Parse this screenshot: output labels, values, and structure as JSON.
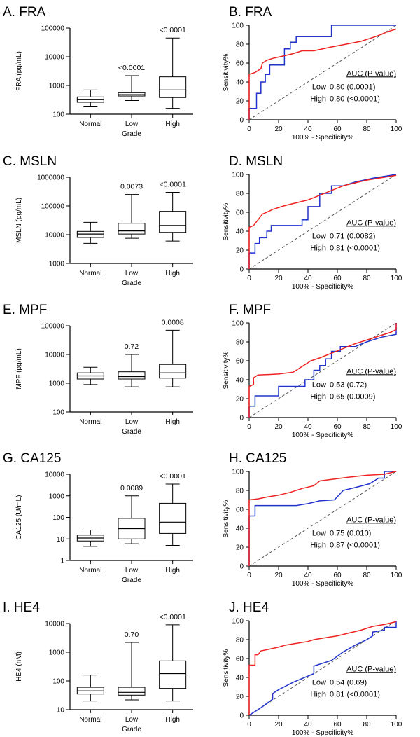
{
  "chart_data": [
    {
      "type": "boxplot",
      "panel": "A",
      "title": "A. FRA",
      "ylabel": "FRA (pg/mL)",
      "xlabel": "Grade",
      "yscale": "log",
      "ylim": [
        100,
        100000
      ],
      "yticks": [
        "100",
        "1000",
        "10000",
        "100000"
      ],
      "categories": [
        "Normal",
        "Low",
        "High"
      ],
      "boxes": [
        {
          "min": 180,
          "q1": 260,
          "median": 320,
          "q3": 400,
          "max": 700,
          "label": ""
        },
        {
          "min": 300,
          "q1": 430,
          "median": 480,
          "q3": 560,
          "max": 2200,
          "label": "<0.0001"
        },
        {
          "min": 160,
          "q1": 380,
          "median": 700,
          "q3": 2000,
          "max": 45000,
          "label": "<0.0001"
        }
      ]
    },
    {
      "type": "roc",
      "panel": "B",
      "title": "B.  FRA",
      "xlabel": "100% - Specificity%",
      "ylabel": "Sensitivity%",
      "xticks": [
        "0",
        "20",
        "40",
        "60",
        "80",
        "100"
      ],
      "yticks": [
        "0",
        "20",
        "40",
        "60",
        "80",
        "100"
      ],
      "auc_header": "AUC (P-value)",
      "series": [
        {
          "name": "Low",
          "auc": "0.80 (0.0001)",
          "color": "#2233cc",
          "points": [
            [
              0,
              0
            ],
            [
              0,
              12
            ],
            [
              5,
              12
            ],
            [
              5,
              28
            ],
            [
              8,
              28
            ],
            [
              8,
              40
            ],
            [
              11,
              40
            ],
            [
              11,
              48
            ],
            [
              14,
              48
            ],
            [
              14,
              58
            ],
            [
              24,
              58
            ],
            [
              24,
              75
            ],
            [
              28,
              75
            ],
            [
              28,
              82
            ],
            [
              32,
              82
            ],
            [
              32,
              88
            ],
            [
              48,
              88
            ],
            [
              56,
              88
            ],
            [
              56,
              100
            ],
            [
              100,
              100
            ]
          ]
        },
        {
          "name": "High",
          "auc": "0.80 (<0.0001)",
          "color": "#ee2222",
          "points": [
            [
              0,
              0
            ],
            [
              0,
              48
            ],
            [
              4,
              50
            ],
            [
              8,
              54
            ],
            [
              9,
              60
            ],
            [
              12,
              63
            ],
            [
              16,
              65
            ],
            [
              22,
              67
            ],
            [
              30,
              70
            ],
            [
              36,
              73
            ],
            [
              44,
              73
            ],
            [
              56,
              77
            ],
            [
              66,
              80
            ],
            [
              76,
              83
            ],
            [
              86,
              88
            ],
            [
              94,
              93
            ],
            [
              100,
              96
            ]
          ]
        }
      ]
    },
    {
      "type": "boxplot",
      "panel": "C",
      "title": "C. MSLN",
      "ylabel": "MSLN (pg/mL)",
      "xlabel": "Grade",
      "yscale": "log",
      "ylim": [
        1000,
        1000000
      ],
      "yticks": [
        "1000",
        "10000",
        "100000",
        "1000000"
      ],
      "categories": [
        "Normal",
        "Low",
        "High"
      ],
      "boxes": [
        {
          "min": 5000,
          "q1": 8000,
          "median": 10500,
          "q3": 13000,
          "max": 27000,
          "label": ""
        },
        {
          "min": 7500,
          "q1": 10500,
          "median": 13500,
          "q3": 25000,
          "max": 250000,
          "label": "0.0073"
        },
        {
          "min": 6000,
          "q1": 12000,
          "median": 21000,
          "q3": 65000,
          "max": 300000,
          "label": "<0.0001"
        }
      ]
    },
    {
      "type": "roc",
      "panel": "D",
      "title": "D.  MSLN",
      "xlabel": "100% - Specificity%",
      "ylabel": "Sensitivity%",
      "xticks": [
        "0",
        "20",
        "40",
        "60",
        "80",
        "100"
      ],
      "yticks": [
        "0",
        "20",
        "40",
        "60",
        "80",
        "100"
      ],
      "auc_header": "AUC (P-value)",
      "series": [
        {
          "name": "Low",
          "auc": "0.71 (0.0082)",
          "color": "#2233cc",
          "points": [
            [
              0,
              0
            ],
            [
              0,
              17
            ],
            [
              4,
              17
            ],
            [
              4,
              27
            ],
            [
              7,
              27
            ],
            [
              7,
              33
            ],
            [
              12,
              33
            ],
            [
              12,
              40
            ],
            [
              15,
              40
            ],
            [
              15,
              46
            ],
            [
              36,
              46
            ],
            [
              36,
              52
            ],
            [
              40,
              52
            ],
            [
              40,
              66
            ],
            [
              48,
              66
            ],
            [
              48,
              80
            ],
            [
              56,
              80
            ],
            [
              56,
              88
            ],
            [
              64,
              88
            ],
            [
              72,
              92
            ],
            [
              84,
              96
            ],
            [
              100,
              100
            ]
          ]
        },
        {
          "name": "High",
          "auc": "0.81 (<0.0001)",
          "color": "#ee2222",
          "points": [
            [
              0,
              0
            ],
            [
              0,
              44
            ],
            [
              3,
              46
            ],
            [
              6,
              52
            ],
            [
              9,
              58
            ],
            [
              12,
              60
            ],
            [
              16,
              63
            ],
            [
              24,
              67
            ],
            [
              32,
              70
            ],
            [
              40,
              73
            ],
            [
              48,
              78
            ],
            [
              56,
              83
            ],
            [
              64,
              88
            ],
            [
              72,
              91
            ],
            [
              80,
              94
            ],
            [
              88,
              96
            ],
            [
              100,
              99
            ]
          ]
        }
      ]
    },
    {
      "type": "boxplot",
      "panel": "E",
      "title": "E. MPF",
      "ylabel": "MPF (pg/mL)",
      "xlabel": "Grade",
      "yscale": "log",
      "ylim": [
        100,
        100000
      ],
      "yticks": [
        "100",
        "1000",
        "10000",
        "100000"
      ],
      "categories": [
        "Normal",
        "Low",
        "High"
      ],
      "boxes": [
        {
          "min": 900,
          "q1": 1400,
          "median": 1800,
          "q3": 2300,
          "max": 3600,
          "label": ""
        },
        {
          "min": 750,
          "q1": 1400,
          "median": 1700,
          "q3": 2500,
          "max": 10000,
          "label": "0.72"
        },
        {
          "min": 750,
          "q1": 1500,
          "median": 2300,
          "q3": 4500,
          "max": 70000,
          "label": "0.0008"
        }
      ]
    },
    {
      "type": "roc",
      "panel": "F",
      "title": "F.  MPF",
      "xlabel": "100% - Specificity%",
      "ylabel": "Sensitivity%",
      "xticks": [
        "0",
        "20",
        "40",
        "60",
        "80",
        "100"
      ],
      "yticks": [
        "0",
        "20",
        "40",
        "60",
        "80",
        "100"
      ],
      "auc_header": "AUC (P-value)",
      "series": [
        {
          "name": "Low",
          "auc": "0.53 (0.72)",
          "color": "#2233cc",
          "points": [
            [
              0,
              0
            ],
            [
              0,
              12
            ],
            [
              4,
              12
            ],
            [
              4,
              23
            ],
            [
              20,
              23
            ],
            [
              20,
              33
            ],
            [
              38,
              33
            ],
            [
              38,
              40
            ],
            [
              44,
              40
            ],
            [
              44,
              50
            ],
            [
              48,
              50
            ],
            [
              48,
              55
            ],
            [
              52,
              55
            ],
            [
              52,
              62
            ],
            [
              56,
              62
            ],
            [
              56,
              70
            ],
            [
              62,
              70
            ],
            [
              62,
              75
            ],
            [
              72,
              75
            ],
            [
              80,
              80
            ],
            [
              90,
              85
            ],
            [
              100,
              88
            ],
            [
              100,
              100
            ]
          ]
        },
        {
          "name": "High",
          "auc": "0.65 (0.0009)",
          "color": "#ee2222",
          "points": [
            [
              0,
              0
            ],
            [
              0,
              33
            ],
            [
              3,
              35
            ],
            [
              3,
              42
            ],
            [
              6,
              45
            ],
            [
              20,
              46
            ],
            [
              30,
              48
            ],
            [
              36,
              54
            ],
            [
              42,
              60
            ],
            [
              48,
              63
            ],
            [
              56,
              68
            ],
            [
              64,
              73
            ],
            [
              72,
              78
            ],
            [
              80,
              82
            ],
            [
              88,
              86
            ],
            [
              96,
              90
            ],
            [
              100,
              93
            ],
            [
              100,
              100
            ]
          ]
        }
      ]
    },
    {
      "type": "boxplot",
      "panel": "G",
      "title": "G. CA125",
      "ylabel": "CA125 (U/mL)",
      "xlabel": "Grade",
      "yscale": "log",
      "ylim": [
        1,
        10000
      ],
      "yticks": [
        "1",
        "10",
        "100",
        "1000",
        "10000"
      ],
      "categories": [
        "Normal",
        "Low",
        "High"
      ],
      "boxes": [
        {
          "min": 4.5,
          "q1": 8,
          "median": 11,
          "q3": 15,
          "max": 26,
          "label": ""
        },
        {
          "min": 6,
          "q1": 10,
          "median": 30,
          "q3": 90,
          "max": 1000,
          "label": "0.0089"
        },
        {
          "min": 5,
          "q1": 18,
          "median": 60,
          "q3": 450,
          "max": 3500,
          "label": "<0.0001"
        }
      ]
    },
    {
      "type": "roc",
      "panel": "H",
      "title": "H.  CA125",
      "xlabel": "100% - Specificity%",
      "ylabel": "Sensitivity%",
      "xticks": [
        "0",
        "20",
        "40",
        "60",
        "80",
        "100"
      ],
      "yticks": [
        "0",
        "20",
        "40",
        "60",
        "80",
        "100"
      ],
      "auc_header": "AUC (P-value)",
      "series": [
        {
          "name": "Low",
          "auc": "0.75 (0.010)",
          "color": "#2233cc",
          "points": [
            [
              0,
              0
            ],
            [
              0,
              53
            ],
            [
              4,
              53
            ],
            [
              4,
              64
            ],
            [
              32,
              64
            ],
            [
              40,
              66
            ],
            [
              48,
              69
            ],
            [
              58,
              70
            ],
            [
              64,
              80
            ],
            [
              72,
              83
            ],
            [
              82,
              87
            ],
            [
              88,
              93
            ],
            [
              92,
              93
            ],
            [
              92,
              100
            ],
            [
              100,
              100
            ]
          ]
        },
        {
          "name": "High",
          "auc": "0.87 (<0.0001)",
          "color": "#ee2222",
          "points": [
            [
              0,
              0
            ],
            [
              0,
              70
            ],
            [
              6,
              71
            ],
            [
              12,
              73
            ],
            [
              20,
              75
            ],
            [
              28,
              78
            ],
            [
              36,
              82
            ],
            [
              44,
              85
            ],
            [
              48,
              90
            ],
            [
              58,
              92
            ],
            [
              68,
              94
            ],
            [
              80,
              96
            ],
            [
              92,
              97
            ],
            [
              100,
              100
            ]
          ]
        }
      ]
    },
    {
      "type": "boxplot",
      "panel": "I",
      "title": "I. HE4",
      "ylabel": "HE4 (nM)",
      "xlabel": "Grade",
      "yscale": "log",
      "ylim": [
        10,
        10000
      ],
      "yticks": [
        "10",
        "100",
        "1000",
        "10000"
      ],
      "categories": [
        "Normal",
        "Low",
        "High"
      ],
      "boxes": [
        {
          "min": 20,
          "q1": 35,
          "median": 45,
          "q3": 60,
          "max": 160,
          "label": ""
        },
        {
          "min": 22,
          "q1": 32,
          "median": 40,
          "q3": 60,
          "max": 2200,
          "label": "0.70"
        },
        {
          "min": 20,
          "q1": 55,
          "median": 180,
          "q3": 500,
          "max": 9000,
          "label": "<0.0001"
        }
      ]
    },
    {
      "type": "roc",
      "panel": "J",
      "title": "J.  HE4",
      "xlabel": "100% - Specificity%",
      "ylabel": "Sensitivity%",
      "xticks": [
        "0",
        "20",
        "40",
        "60",
        "80",
        "100"
      ],
      "yticks": [
        "0",
        "20",
        "40",
        "60",
        "80",
        "100"
      ],
      "auc_header": "AUC (P-value)",
      "series": [
        {
          "name": "Low",
          "auc": "0.54 (0.69)",
          "color": "#2233cc",
          "points": [
            [
              0,
              0
            ],
            [
              8,
              8
            ],
            [
              16,
              17
            ],
            [
              16,
              23
            ],
            [
              20,
              27
            ],
            [
              30,
              35
            ],
            [
              44,
              44
            ],
            [
              44,
              52
            ],
            [
              56,
              58
            ],
            [
              64,
              67
            ],
            [
              72,
              74
            ],
            [
              80,
              80
            ],
            [
              84,
              84
            ],
            [
              84,
              88
            ],
            [
              92,
              90
            ],
            [
              92,
              93
            ],
            [
              100,
              93
            ],
            [
              100,
              100
            ]
          ]
        },
        {
          "name": "High",
          "auc": "0.81 (<0.0001)",
          "color": "#ee2222",
          "points": [
            [
              0,
              0
            ],
            [
              0,
              53
            ],
            [
              4,
              53
            ],
            [
              4,
              64
            ],
            [
              6,
              64
            ],
            [
              8,
              68
            ],
            [
              14,
              70
            ],
            [
              20,
              72
            ],
            [
              24,
              74
            ],
            [
              32,
              76
            ],
            [
              40,
              78
            ],
            [
              44,
              80
            ],
            [
              52,
              82
            ],
            [
              60,
              84
            ],
            [
              68,
              87
            ],
            [
              76,
              90
            ],
            [
              84,
              94
            ],
            [
              92,
              96
            ],
            [
              100,
              99
            ]
          ]
        }
      ]
    }
  ]
}
